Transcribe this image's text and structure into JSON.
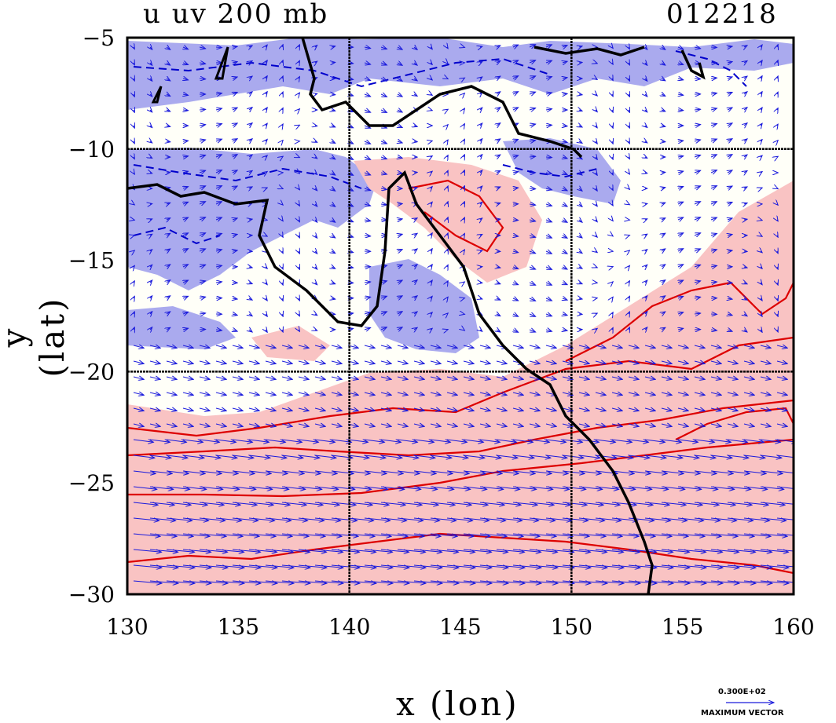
{
  "header": {
    "left_title": "u uv 200 mb",
    "right_title": "012218"
  },
  "colors": {
    "positive_shade": "#f9c3c3",
    "negative_shade": "#aaaaee",
    "positive_contour": "#dd0000",
    "negative_contour": "#0000cc",
    "vector": "#1a1adc",
    "coast": "#000000"
  },
  "chart_data": {
    "type": "vector-contour-map",
    "xlabel": "x (lon)",
    "ylabel": "y (lat)",
    "xlim": [
      130,
      160
    ],
    "ylim": [
      -30,
      -5
    ],
    "xticks": [
      "130",
      "135",
      "140",
      "145",
      "150",
      "155",
      "160"
    ],
    "yticks": [
      "-5",
      "-10",
      "-15",
      "-20",
      "-25",
      "-30"
    ],
    "grid_lines": {
      "x": [
        140,
        150
      ],
      "y": [
        -10,
        -20
      ]
    },
    "reference_vector": {
      "value": "0.300E+02",
      "label": "MAXIMUM VECTOR"
    }
  }
}
